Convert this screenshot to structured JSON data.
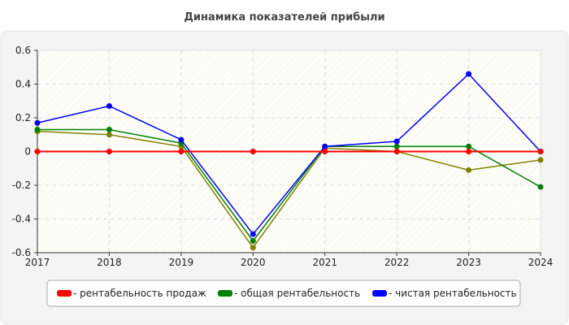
{
  "chart_data": {
    "type": "line",
    "title": "Динамика показателей прибыли",
    "xlabel": "",
    "ylabel": "",
    "categories": [
      "2017",
      "2018",
      "2019",
      "2020",
      "2021",
      "2022",
      "2023",
      "2024"
    ],
    "ylim": [
      -0.6,
      0.6
    ],
    "yticks": [
      "0.6",
      "0.4",
      "0.2",
      "0",
      "-0.2",
      "-0.4",
      "-0.6"
    ],
    "ytick_values": [
      0.6,
      0.4,
      0.2,
      0,
      -0.2,
      -0.4,
      -0.6
    ],
    "grid": true,
    "legend_position": "bottom",
    "series": [
      {
        "name": "- рентабельность продаж",
        "color": "#ff0000",
        "values": [
          0,
          0,
          0,
          0,
          0,
          0,
          0,
          0
        ]
      },
      {
        "name": "- общая рентабельность",
        "color": "#008000",
        "values": [
          0.13,
          0.13,
          0.05,
          -0.53,
          0.03,
          0.03,
          0.03,
          -0.21
        ]
      },
      {
        "color": "#808000",
        "values": [
          0.12,
          0.1,
          0.03,
          -0.57,
          0.02,
          0.0,
          -0.11,
          -0.05
        ]
      },
      {
        "name": "- чистая рентабельность",
        "color": "#0000ff",
        "values": [
          0.17,
          0.27,
          0.07,
          -0.49,
          0.03,
          0.06,
          0.46,
          0.0
        ]
      }
    ]
  }
}
